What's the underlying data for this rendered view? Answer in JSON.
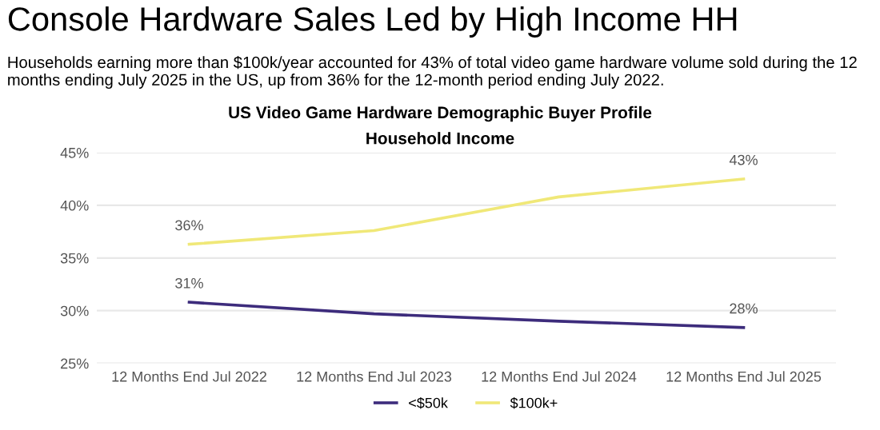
{
  "chart_data": {
    "type": "line",
    "title": "Console Hardware Sales Led by High Income HH",
    "subtitle": "Households earning more than $100k/year accounted for 43% of total video game hardware volume sold during the 12 months ending July 2025 in the US, up from 36% for the 12-month period ending July 2022.",
    "annotations": [
      "US Video Game Hardware Demographic Buyer Profile",
      "Household Income"
    ],
    "categories": [
      "12 Months End Jul 2022",
      "12 Months End Jul 2023",
      "12 Months End Jul 2024",
      "12 Months End Jul 2025"
    ],
    "series": [
      {
        "name": "<$50k",
        "color": "#3d2c7c",
        "values": [
          30.8,
          29.7,
          29.0,
          28.4
        ],
        "value_labels": [
          "31%",
          null,
          null,
          "28%"
        ]
      },
      {
        "name": "$100k+",
        "color": "#f0e878",
        "values": [
          36.3,
          37.6,
          40.8,
          42.5
        ],
        "value_labels": [
          "36%",
          null,
          null,
          "43%"
        ]
      }
    ],
    "ylim": [
      25,
      45
    ],
    "yticks": [
      {
        "value": 25,
        "label": "25%"
      },
      {
        "value": 30,
        "label": "30%"
      },
      {
        "value": 35,
        "label": "35%"
      },
      {
        "value": 40,
        "label": "40%"
      },
      {
        "value": 45,
        "label": "45%"
      }
    ],
    "grid": "y",
    "legend": "bottom",
    "marker": "none",
    "line_style": "solid"
  }
}
